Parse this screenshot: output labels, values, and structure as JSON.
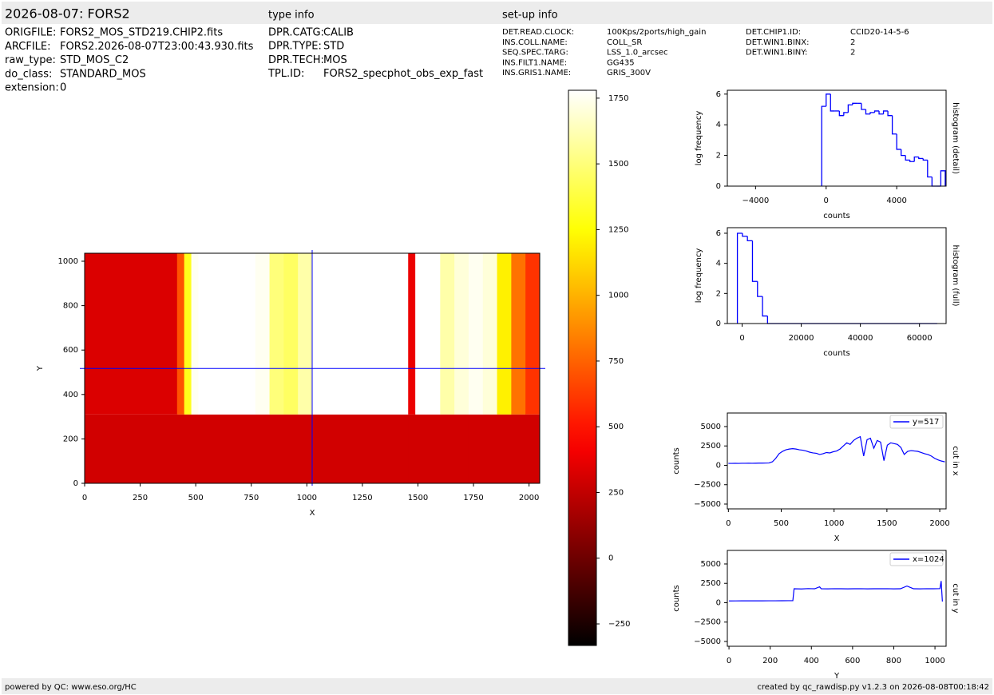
{
  "header": {
    "title": "2026-08-07: FORS2",
    "type_info": "type info",
    "setup_info": "set-up info"
  },
  "file_info": [
    {
      "key": "ORIGFILE:",
      "value": "FORS2_MOS_STD219.CHIP2.fits"
    },
    {
      "key": "ARCFILE:",
      "value": "FORS2.2026-08-07T23:00:43.930.fits"
    },
    {
      "key": "raw_type:",
      "value": "STD_MOS_C2"
    },
    {
      "key": "do_class:",
      "value": "STANDARD_MOS"
    },
    {
      "key": "extension:",
      "value": 0
    }
  ],
  "type_info": [
    {
      "key": "DPR.CATG:",
      "value": "CALIB"
    },
    {
      "key": "DPR.TYPE:",
      "value": "STD"
    },
    {
      "key": "DPR.TECH:",
      "value": "MOS"
    },
    {
      "key": "TPL.ID:",
      "value": "FORS2_specphot_obs_exp_fast"
    }
  ],
  "setup_info": [
    [
      {
        "key": "DET.READ.CLOCK:",
        "value": "100Kps/2ports/high_gain"
      },
      {
        "key": "INS.COLL.NAME:",
        "value": "COLL_SR"
      },
      {
        "key": "SEQ.SPEC.TARG:",
        "value": "LSS_1.0_arcsec"
      },
      {
        "key": "INS.FILT1.NAME:",
        "value": "GG435"
      },
      {
        "key": "INS.GRIS1.NAME:",
        "value": "GRIS_300V"
      }
    ],
    [
      {
        "key": "DET.CHIP1.ID:",
        "value": "CCID20-14-5-6"
      },
      {
        "key": "DET.WIN1.BINX:",
        "value": "2"
      },
      {
        "key": "DET.WIN1.BINY:",
        "value": "2"
      }
    ]
  ],
  "footer": {
    "left": "powered by QC: www.eso.org/HC",
    "right": "created by qc_rawdisp.py v1.2.3 on 2026-08-08T00:18:42"
  },
  "chart_data": [
    {
      "type": "image",
      "xlabel": "X",
      "ylabel": "Y",
      "xlim": [
        0,
        2048
      ],
      "ylim": [
        0,
        1036
      ],
      "xticks": [
        0,
        250,
        500,
        750,
        1000,
        1250,
        1500,
        1750,
        2000
      ],
      "yticks": [
        0,
        200,
        400,
        600,
        800,
        1000
      ],
      "colormap": "hot",
      "clim": [
        -332,
        1780
      ],
      "cticks": [
        {
          "value": -250,
          "label": "−250"
        },
        0,
        250,
        500,
        750,
        1000,
        1250,
        1500,
        1750
      ],
      "xbins": [
        0,
        416,
        448,
        480,
        512,
        768,
        832,
        896,
        960,
        1024,
        1440,
        1456,
        1488,
        1536,
        1600,
        1664,
        1728,
        1792,
        1856,
        1920,
        1984,
        2048
      ],
      "ybins": [
        0,
        310,
        1036
      ],
      "values": [
        [
          300,
          300,
          300,
          300,
          300,
          300,
          300,
          300,
          300,
          300,
          300,
          300,
          300,
          300,
          300,
          300,
          300,
          300,
          300,
          300,
          300
        ],
        [
          330,
          700,
          1300,
          1750,
          1800,
          1750,
          1500,
          1450,
          1600,
          1800,
          1800,
          380,
          1800,
          1800,
          1600,
          1700,
          1750,
          1700,
          1200,
          800,
          600
        ]
      ],
      "crosshair_x": 1024,
      "crosshair_y": 517,
      "crosshair_color": "#0000ff"
    },
    {
      "type": "histogram",
      "xlabel": "counts",
      "ylabel": "log frequency",
      "side_label": "histogram (detail)",
      "xlim": [
        -5600,
        6800
      ],
      "ylim": [
        0,
        6.25
      ],
      "xticks": [
        {
          "value": -4000,
          "label": "−4000"
        },
        0,
        4000
      ],
      "yticks": [
        0,
        2,
        4,
        6
      ],
      "color": "#0000ff",
      "bins": [
        -250,
        0,
        250,
        500,
        750,
        1000,
        1250,
        1500,
        1750,
        2000,
        2250,
        2500,
        2750,
        3000,
        3250,
        3500,
        3750,
        4000,
        4250,
        4500,
        4750,
        5000,
        5250,
        5500,
        5750,
        6000,
        6250,
        6500,
        6750
      ],
      "values": [
        5.2,
        6.0,
        4.9,
        4.9,
        4.6,
        4.8,
        5.3,
        5.4,
        5.4,
        5.0,
        4.7,
        4.8,
        4.9,
        4.7,
        4.9,
        4.6,
        3.4,
        2.4,
        2.0,
        1.7,
        1.6,
        1.9,
        1.8,
        1.7,
        0.6,
        0,
        0,
        1.0
      ]
    },
    {
      "type": "histogram",
      "xlabel": "counts",
      "ylabel": "log frequency",
      "side_label": "histogram (full)",
      "xlim": [
        -5000,
        69000
      ],
      "ylim": [
        0,
        6.37
      ],
      "xticks": [
        0,
        20000,
        40000,
        60000
      ],
      "yticks": [
        0,
        2,
        4,
        6
      ],
      "color": "#0000ff",
      "bins": [
        -1600,
        100,
        1800,
        3500,
        5200,
        6900,
        8600,
        66000
      ],
      "values": [
        6.0,
        5.8,
        5.5,
        2.8,
        1.8,
        0.5,
        0
      ]
    },
    {
      "type": "line",
      "xlabel": "X",
      "ylabel": "counts",
      "side_label": "cut in x",
      "xlim": [
        -10,
        2060
      ],
      "ylim": [
        -5620,
        6750
      ],
      "xticks": [
        0,
        500,
        1000,
        1500,
        2000
      ],
      "yticks": [
        {
          "value": -5000,
          "label": "−5000"
        },
        {
          "value": -2500,
          "label": "−2500"
        },
        0,
        2500,
        5000
      ],
      "legend": "upper right",
      "x": [
        0,
        32,
        64,
        96,
        128,
        160,
        192,
        224,
        256,
        288,
        320,
        352,
        384,
        416,
        448,
        480,
        512,
        544,
        576,
        608,
        640,
        672,
        704,
        736,
        768,
        800,
        832,
        864,
        896,
        928,
        960,
        992,
        1024,
        1056,
        1088,
        1120,
        1152,
        1184,
        1216,
        1248,
        1280,
        1312,
        1344,
        1376,
        1408,
        1440,
        1472,
        1504,
        1536,
        1568,
        1600,
        1632,
        1664,
        1696,
        1728,
        1760,
        1792,
        1824,
        1856,
        1888,
        1920,
        1952,
        1984,
        2016,
        2048
      ],
      "series": [
        {
          "name": "y=517",
          "color": "#0000ff",
          "values": [
            250,
            250,
            260,
            250,
            260,
            260,
            270,
            260,
            270,
            280,
            280,
            290,
            300,
            450,
            900,
            1500,
            1800,
            2000,
            2100,
            2150,
            2100,
            2000,
            1950,
            1850,
            1700,
            1600,
            1550,
            1400,
            1500,
            1650,
            1600,
            1750,
            1850,
            2100,
            2500,
            2900,
            2700,
            3200,
            3500,
            3700,
            1200,
            3300,
            3500,
            2200,
            3200,
            3000,
            600,
            2600,
            2900,
            2800,
            2700,
            2300,
            1400,
            1800,
            1900,
            1850,
            1800,
            1650,
            1500,
            1400,
            1200,
            900,
            700,
            550,
            450
          ]
        }
      ]
    },
    {
      "type": "line",
      "xlabel": "Y",
      "ylabel": "counts",
      "side_label": "cut in y",
      "xlim": [
        -8,
        1054
      ],
      "ylim": [
        -5620,
        6750
      ],
      "xticks": [
        0,
        200,
        400,
        600,
        800,
        1000
      ],
      "yticks": [
        {
          "value": -5000,
          "label": "−5000"
        },
        {
          "value": -2500,
          "label": "−2500"
        },
        0,
        2500,
        5000
      ],
      "legend": "upper right",
      "x": [
        0,
        32,
        64,
        96,
        128,
        160,
        192,
        224,
        256,
        288,
        310,
        316,
        352,
        384,
        416,
        440,
        448,
        480,
        512,
        544,
        576,
        608,
        640,
        672,
        704,
        736,
        768,
        800,
        832,
        864,
        896,
        928,
        960,
        992,
        1024,
        1030,
        1036
      ],
      "series": [
        {
          "name": "x=1024",
          "color": "#0000ff",
          "values": [
            230,
            235,
            240,
            240,
            245,
            245,
            250,
            250,
            255,
            260,
            260,
            1800,
            1780,
            1820,
            1800,
            2050,
            1800,
            1790,
            1810,
            1800,
            1790,
            1800,
            1810,
            1790,
            1800,
            1800,
            1810,
            1790,
            1800,
            2150,
            1800,
            1790,
            1810,
            1800,
            1820,
            2800,
            150
          ]
        }
      ]
    }
  ]
}
